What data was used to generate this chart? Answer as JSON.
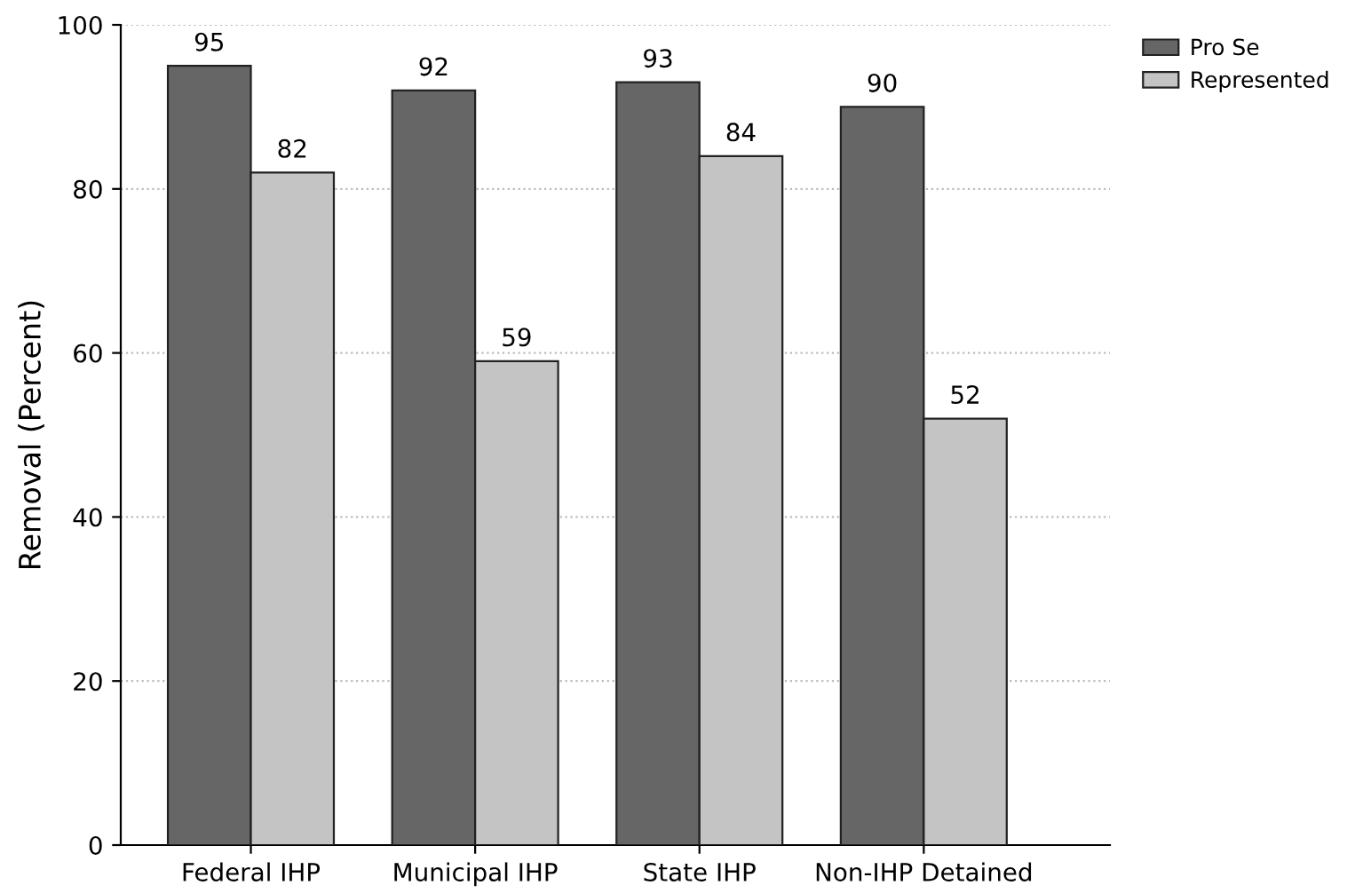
{
  "chart_data": {
    "type": "bar",
    "ylabel": "Removal (Percent)",
    "categories": [
      "Federal IHP",
      "Municipal IHP",
      "State IHP",
      "Non-IHP Detained"
    ],
    "series": [
      {
        "name": "Pro Se",
        "color": "#666666",
        "values": [
          95,
          92,
          93,
          90
        ]
      },
      {
        "name": "Represented",
        "color": "#c4c4c4",
        "values": [
          82,
          59,
          84,
          52
        ]
      }
    ],
    "ylim": [
      0,
      100
    ],
    "yticks": [
      0,
      20,
      40,
      60,
      80,
      100
    ],
    "grid": "y",
    "legend": "top right",
    "data_labels": true
  }
}
